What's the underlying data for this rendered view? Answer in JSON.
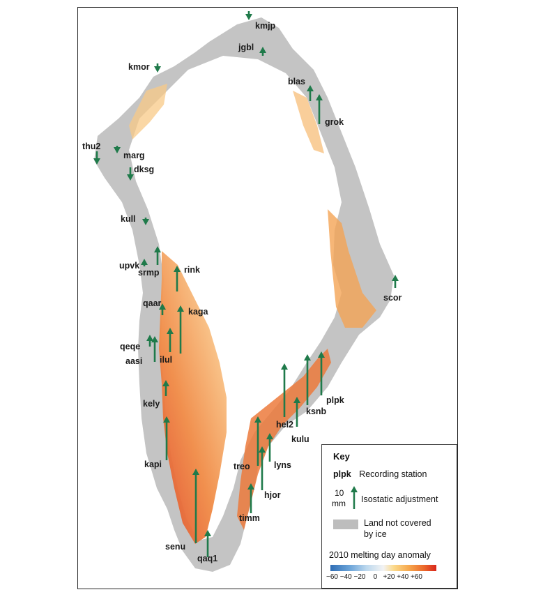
{
  "colors": {
    "land": "#bdbdbd",
    "ice": "#ffffff",
    "arrow": "#1f7a4a",
    "anomaly_low": "#2f6db5",
    "anomaly_zero": "#f3f3f3",
    "anomaly_high": "#d8261c"
  },
  "stations": [
    {
      "id": "kmjp",
      "direction": "down"
    },
    {
      "id": "jgbl",
      "direction": "up"
    },
    {
      "id": "kmor",
      "direction": "down"
    },
    {
      "id": "blas",
      "direction": "up"
    },
    {
      "id": "grok",
      "direction": "up"
    },
    {
      "id": "thu2",
      "direction": "down"
    },
    {
      "id": "marg",
      "direction": "down"
    },
    {
      "id": "dksg",
      "direction": "down"
    },
    {
      "id": "kull",
      "direction": "down"
    },
    {
      "id": "upvk",
      "direction": "up"
    },
    {
      "id": "srmp",
      "direction": "up"
    },
    {
      "id": "rink",
      "direction": "up"
    },
    {
      "id": "qaar",
      "direction": "up"
    },
    {
      "id": "kaga",
      "direction": "up"
    },
    {
      "id": "qeqe",
      "direction": "up"
    },
    {
      "id": "aasi",
      "direction": "up"
    },
    {
      "id": "ilul",
      "direction": "up"
    },
    {
      "id": "scor",
      "direction": "up"
    },
    {
      "id": "kely",
      "direction": "up"
    },
    {
      "id": "plpk",
      "direction": "up"
    },
    {
      "id": "ksnb",
      "direction": "up"
    },
    {
      "id": "hel2",
      "direction": "up"
    },
    {
      "id": "kulu",
      "direction": "up"
    },
    {
      "id": "kapi",
      "direction": "up"
    },
    {
      "id": "treo",
      "direction": "up"
    },
    {
      "id": "lyns",
      "direction": "up"
    },
    {
      "id": "hjor",
      "direction": "up"
    },
    {
      "id": "timm",
      "direction": "up"
    },
    {
      "id": "senu",
      "direction": "up"
    },
    {
      "id": "qaq1",
      "direction": "up"
    }
  ],
  "key": {
    "title": "Key",
    "station_example": "plpk",
    "station_text": "Recording station",
    "scale_value": "10",
    "scale_unit": "mm",
    "arrow_text": "Isostatic adjustment",
    "land_text_1": "Land not covered",
    "land_text_2": "by ice",
    "anomaly_title": "2010 melting day anomaly",
    "colorbar_ticks": [
      "−60",
      "−40",
      "−20",
      "0",
      "+20",
      "+40",
      "+60"
    ]
  }
}
